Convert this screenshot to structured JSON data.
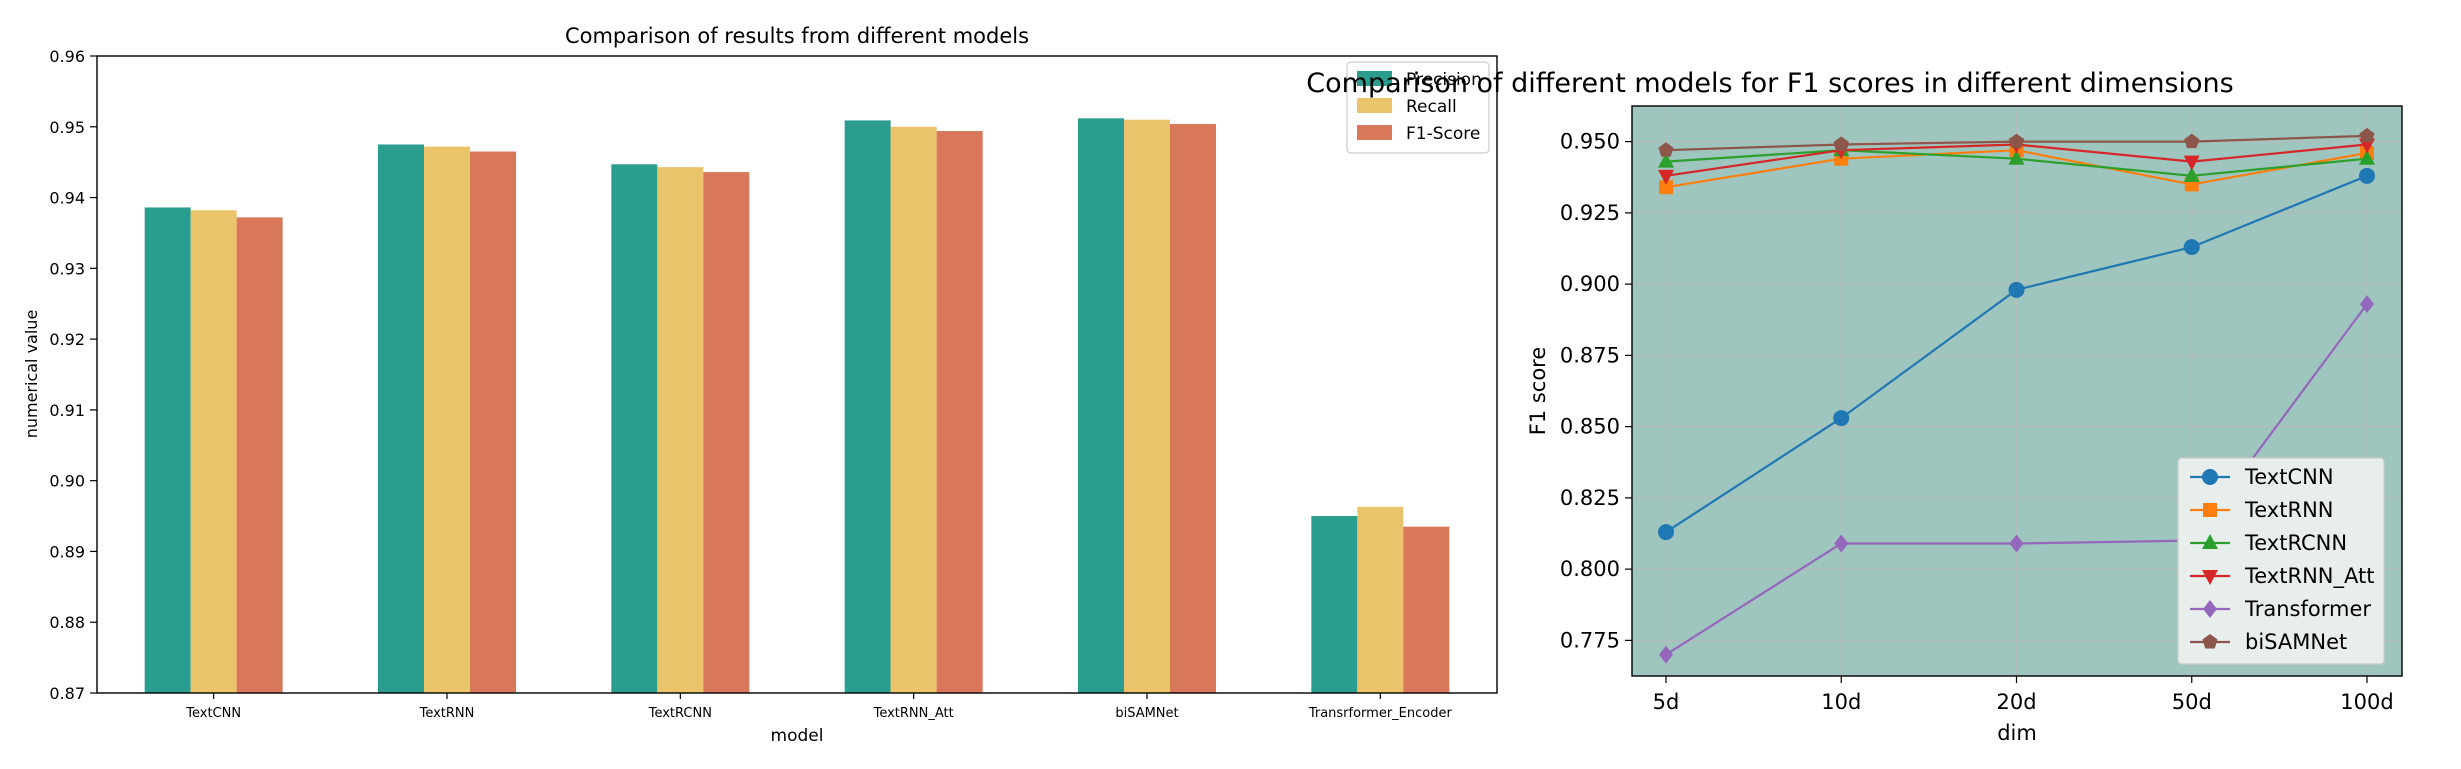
{
  "chart_data": [
    {
      "type": "bar",
      "title": "Comparison of results from different models",
      "xlabel": "model",
      "ylabel": "numerical value",
      "ylim": [
        0.87,
        0.96
      ],
      "yticks": [
        "0.87",
        "0.88",
        "0.89",
        "0.90",
        "0.91",
        "0.92",
        "0.93",
        "0.94",
        "0.95",
        "0.96"
      ],
      "legend_position": "top-right",
      "categories": [
        "TextCNN",
        "TextRNN",
        "TextRCNN",
        "TextRNN_Att",
        "biSAMNet",
        "Transrformer_Encoder"
      ],
      "series": [
        {
          "name": "Precision",
          "color": "#2a9d8f",
          "values": [
            0.9386,
            0.9475,
            0.9447,
            0.9509,
            0.9512,
            0.895
          ]
        },
        {
          "name": "Recall",
          "color": "#e9c46a",
          "values": [
            0.9382,
            0.9472,
            0.9443,
            0.95,
            0.951,
            0.8963
          ]
        },
        {
          "name": "F1-Score",
          "color": "#d9775a",
          "values": [
            0.9372,
            0.9465,
            0.9436,
            0.9494,
            0.9504,
            0.8935
          ]
        }
      ]
    },
    {
      "type": "line",
      "title": "Comparison of different models for F1 scores in different dimensions",
      "xlabel": "dim",
      "ylabel": "F1 score",
      "ylim": [
        0.7625,
        0.9625
      ],
      "yticks": [
        "0.775",
        "0.800",
        "0.825",
        "0.850",
        "0.875",
        "0.900",
        "0.925",
        "0.950"
      ],
      "background": "#9ec5be",
      "grid": true,
      "legend_position": "bottom-right",
      "x": [
        "5d",
        "10d",
        "20d",
        "50d",
        "100d"
      ],
      "series": [
        {
          "name": "TextCNN",
          "color": "#1f77b4",
          "marker": "circle",
          "values": [
            0.813,
            0.853,
            0.898,
            0.913,
            0.938
          ]
        },
        {
          "name": "TextRNN",
          "color": "#ff7f0e",
          "marker": "square",
          "values": [
            0.934,
            0.944,
            0.947,
            0.935,
            0.946
          ]
        },
        {
          "name": "TextRCNN",
          "color": "#2ca02c",
          "marker": "triangle-up",
          "values": [
            0.943,
            0.947,
            0.944,
            0.938,
            0.944
          ]
        },
        {
          "name": "TextRNN_Att",
          "color": "#d62728",
          "marker": "triangle-down",
          "values": [
            0.938,
            0.947,
            0.949,
            0.943,
            0.949
          ]
        },
        {
          "name": "Transformer",
          "color": "#9467bd",
          "marker": "diamond",
          "values": [
            0.77,
            0.809,
            0.809,
            0.81,
            0.893
          ]
        },
        {
          "name": "biSAMNet",
          "color": "#8c564b",
          "marker": "pentagon",
          "values": [
            0.947,
            0.949,
            0.95,
            0.95,
            0.952
          ]
        }
      ]
    }
  ]
}
